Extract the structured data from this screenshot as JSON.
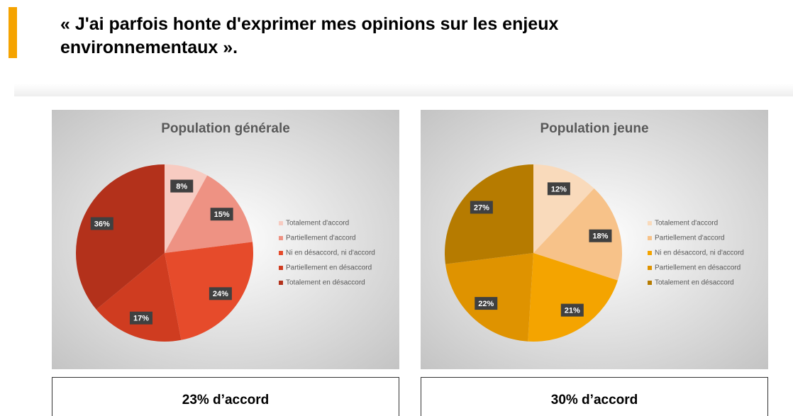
{
  "header": {
    "title_lines": [
      "« J'ai parfois honte d'exprimer mes opinions sur les enjeux",
      "environnementaux »."
    ]
  },
  "chart_data": [
    {
      "type": "pie",
      "title": "Population générale",
      "categories": [
        "Totalement d'accord",
        "Partiellement d'accord",
        "Ni en désaccord, ni d'accord",
        "Partiellement en désaccord",
        "Totalement en désaccord"
      ],
      "values": [
        8,
        15,
        24,
        17,
        36
      ],
      "value_labels": [
        "8%",
        "15%",
        "24%",
        "17%",
        "36%"
      ],
      "colors": [
        "#f7cbc1",
        "#ee9283",
        "#e64b2b",
        "#cf3c20",
        "#b3311b"
      ],
      "annotation": "23% d’accord"
    },
    {
      "type": "pie",
      "title": "Population jeune",
      "categories": [
        "Totalement d'accord",
        "Partiellement d'accord",
        "Ni en désaccord, ni d'accord",
        "Partiellement en désaccord",
        "Totalement en désaccord"
      ],
      "values": [
        12,
        18,
        21,
        22,
        27
      ],
      "value_labels": [
        "12%",
        "18%",
        "21%",
        "22%",
        "27%"
      ],
      "colors": [
        "#f9dabb",
        "#f7c289",
        "#f4a400",
        "#df9300",
        "#b67b00"
      ],
      "annotation": "30% d’accord"
    }
  ]
}
